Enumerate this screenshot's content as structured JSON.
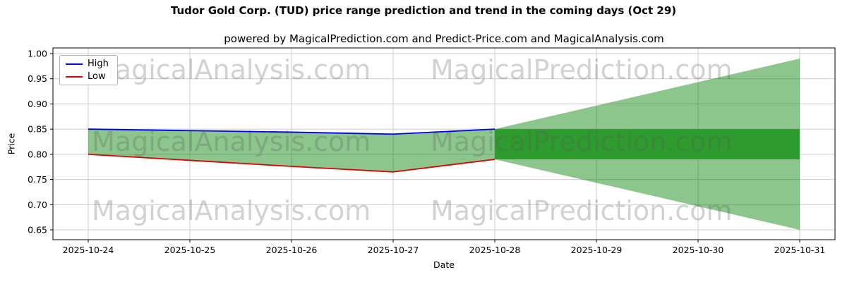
{
  "chart_data": {
    "type": "area",
    "title": "Tudor Gold Corp. (TUD) price range prediction and trend in the coming days (Oct 29)",
    "subtitle": "powered by MagicalPrediction.com and Predict-Price.com and MagicalAnalysis.com",
    "xlabel": "Date",
    "ylabel": "Price",
    "ylim": [
      0.65,
      1.0
    ],
    "ytick_labels": [
      "1.00",
      "0.95",
      "0.90",
      "0.85",
      "0.80",
      "0.75",
      "0.70",
      "0.65"
    ],
    "yticks": [
      1.0,
      0.95,
      0.9,
      0.85,
      0.8,
      0.75,
      0.7,
      0.65
    ],
    "categories": [
      "2025-10-24",
      "2025-10-25",
      "2025-10-26",
      "2025-10-27",
      "2025-10-28",
      "2025-10-29",
      "2025-10-30",
      "2025-10-31"
    ],
    "series": [
      {
        "name": "High",
        "color": "#0000ee",
        "values": [
          0.85,
          0.847,
          0.844,
          0.84,
          0.85
        ]
      },
      {
        "name": "Low",
        "color": "#e00000",
        "values": [
          0.8,
          0.788,
          0.776,
          0.765,
          0.79
        ]
      }
    ],
    "forecast": {
      "start_index": 4,
      "end_index": 7,
      "upper_start": 0.85,
      "upper_end": 0.99,
      "lower_start": 0.79,
      "lower_end": 0.65,
      "band_top": 0.85,
      "band_bottom": 0.79
    },
    "legend": [
      {
        "label": "High",
        "color": "#0000ee"
      },
      {
        "label": "Low",
        "color": "#e00000"
      }
    ],
    "watermarks": {
      "left_text": "MagicalAnalysis.com",
      "right_text": "MagicalPrediction.com"
    },
    "colors": {
      "history_band": "rgba(0,128,0,0.45)",
      "forecast_fan": "rgba(0,128,0,0.45)",
      "forecast_band": "#2e9b2e",
      "grid": "#cccccc",
      "axis": "#000000",
      "watermark": "rgba(90,90,90,0.27)"
    }
  }
}
